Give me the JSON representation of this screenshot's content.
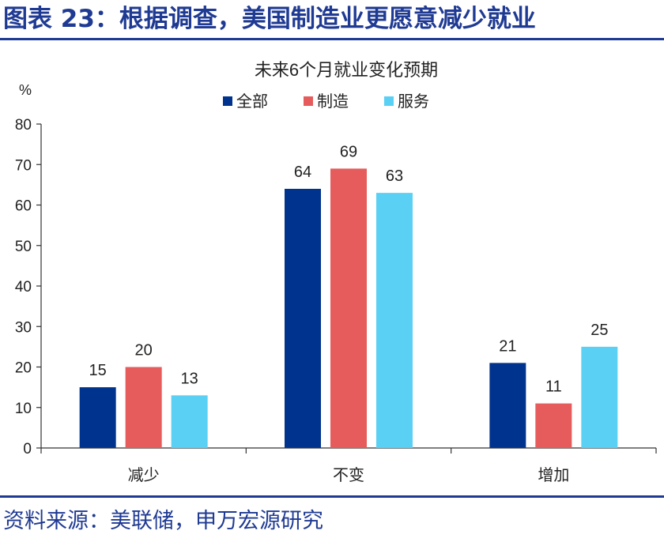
{
  "figure": {
    "title": "图表 23：根据调查，美国制造业更愿意减少就业",
    "source": "资料来源：美联储，申万宏源研究"
  },
  "colors": {
    "frame_blue": "#1f3a93",
    "series": [
      "#00338d",
      "#e65c5c",
      "#5bd0f5"
    ]
  },
  "chart_data": {
    "type": "bar",
    "title": "未来6个月就业变化预期",
    "ylabel": "%",
    "xlabel": "",
    "categories": [
      "减少",
      "不变",
      "增加"
    ],
    "series": [
      {
        "name": "全部",
        "values": [
          15,
          64,
          21
        ]
      },
      {
        "name": "制造",
        "values": [
          20,
          69,
          11
        ]
      },
      {
        "name": "服务",
        "values": [
          13,
          63,
          25
        ]
      }
    ],
    "ylim": [
      0,
      80
    ],
    "yticks": [
      0,
      10,
      20,
      30,
      40,
      50,
      60,
      70,
      80
    ],
    "grid": false,
    "legend": "top-center",
    "data_labels": true
  }
}
